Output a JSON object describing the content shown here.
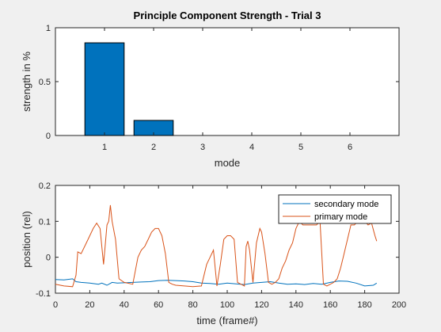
{
  "chart_data": [
    {
      "type": "bar",
      "title": "Principle Component Strength - Trial 3",
      "xlabel": "mode",
      "ylabel": "strength in %",
      "categories": [
        "1",
        "2",
        "3",
        "4",
        "5",
        "6"
      ],
      "values": [
        0.86,
        0.14,
        0,
        0,
        0,
        0
      ],
      "xlim": [
        0,
        7
      ],
      "ylim": [
        0,
        1
      ],
      "xticks": [
        "1",
        "2",
        "3",
        "4",
        "5",
        "6"
      ],
      "yticks": [
        "0",
        "0.5",
        "1"
      ],
      "bar_color": "#0072bd",
      "grid": false
    },
    {
      "type": "line",
      "title": "",
      "xlabel": "time (frame#)",
      "ylabel": "position (rel)",
      "xlim": [
        0,
        200
      ],
      "ylim": [
        -0.1,
        0.2
      ],
      "xticks": [
        "0",
        "20",
        "40",
        "60",
        "80",
        "100",
        "120",
        "140",
        "160",
        "180",
        "200"
      ],
      "yticks": [
        "-0.1",
        "0",
        "0.1",
        "0.2"
      ],
      "legend_position": "top-right",
      "grid": false,
      "series": [
        {
          "name": "secondary mode",
          "color": "#0072bd",
          "x": [
            0,
            5,
            10,
            12,
            15,
            20,
            25,
            27,
            30,
            33,
            36,
            40,
            45,
            50,
            55,
            60,
            65,
            70,
            75,
            80,
            85,
            90,
            95,
            100,
            105,
            110,
            115,
            120,
            125,
            130,
            135,
            140,
            145,
            150,
            155,
            160,
            165,
            170,
            175,
            180,
            185,
            187
          ],
          "y": [
            -0.062,
            -0.063,
            -0.06,
            -0.068,
            -0.07,
            -0.072,
            -0.075,
            -0.072,
            -0.078,
            -0.07,
            -0.072,
            -0.071,
            -0.07,
            -0.069,
            -0.068,
            -0.065,
            -0.064,
            -0.065,
            -0.066,
            -0.068,
            -0.072,
            -0.073,
            -0.075,
            -0.072,
            -0.074,
            -0.076,
            -0.072,
            -0.07,
            -0.068,
            -0.072,
            -0.075,
            -0.074,
            -0.076,
            -0.073,
            -0.075,
            -0.07,
            -0.066,
            -0.067,
            -0.072,
            -0.08,
            -0.078,
            -0.072
          ]
        },
        {
          "name": "primary mode",
          "color": "#d95319",
          "x": [
            0,
            5,
            10,
            12,
            13,
            15,
            18,
            20,
            22,
            24,
            26,
            28,
            30,
            31,
            32,
            33,
            35,
            37,
            40,
            45,
            48,
            50,
            52,
            54,
            56,
            58,
            60,
            62,
            64,
            66,
            68,
            70,
            75,
            80,
            85,
            88,
            90,
            92,
            94,
            96,
            98,
            100,
            102,
            104,
            106,
            108,
            110,
            111,
            112,
            113,
            115,
            117,
            119,
            120,
            122,
            124,
            126,
            128,
            130,
            132,
            134,
            136,
            138,
            140,
            142,
            144,
            146,
            148,
            150,
            152,
            154,
            156,
            158,
            160,
            162,
            164,
            166,
            168,
            170,
            172,
            174,
            176,
            178,
            180,
            182,
            184,
            186,
            187
          ],
          "y": [
            -0.075,
            -0.08,
            -0.082,
            -0.05,
            0.015,
            0.01,
            0.04,
            0.06,
            0.08,
            0.095,
            0.08,
            -0.02,
            0.09,
            0.1,
            0.145,
            0.1,
            0.05,
            -0.06,
            -0.07,
            -0.075,
            0.0,
            0.02,
            0.03,
            0.05,
            0.07,
            0.08,
            0.08,
            0.06,
            0.01,
            -0.07,
            -0.075,
            -0.078,
            -0.08,
            -0.082,
            -0.08,
            -0.02,
            0.0,
            0.02,
            -0.08,
            -0.02,
            0.05,
            0.06,
            0.06,
            0.05,
            -0.07,
            -0.075,
            -0.08,
            0.03,
            0.045,
            0.02,
            -0.07,
            0.04,
            0.08,
            0.07,
            0.01,
            -0.07,
            -0.075,
            -0.07,
            -0.06,
            -0.03,
            -0.01,
            0.02,
            0.04,
            0.08,
            0.1,
            0.09,
            0.09,
            0.09,
            0.09,
            0.09,
            0.1,
            -0.075,
            -0.08,
            -0.075,
            -0.07,
            -0.06,
            -0.03,
            0.01,
            0.05,
            0.09,
            0.09,
            0.1,
            0.11,
            0.1,
            0.09,
            0.095,
            0.06,
            0.045
          ]
        }
      ]
    }
  ]
}
